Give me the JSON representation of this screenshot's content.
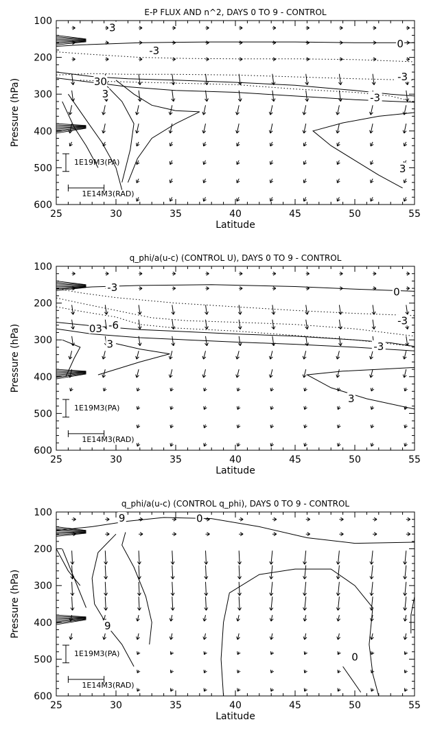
{
  "chart_data": [
    {
      "type": "contour",
      "title": "E-P FLUX AND n^2, DAYS 0 TO 9 - CONTROL",
      "xlabel": "Latitude",
      "ylabel": "Pressure (hPa)",
      "xlim": [
        25,
        55
      ],
      "ylim": [
        600,
        100
      ],
      "x_ticks": [
        "25",
        "30",
        "35",
        "40",
        "45",
        "50",
        "55"
      ],
      "y_ticks": [
        "100",
        "200",
        "300",
        "400",
        "500",
        "600"
      ],
      "vector_scale_labels": [
        "1E19M3(PA)",
        "1E14M3(RAD)"
      ],
      "contour_labels": [
        {
          "text": "0",
          "x": 53.8,
          "y": 163
        },
        {
          "text": "-3",
          "x": 33.2,
          "y": 182
        },
        {
          "text": "-3",
          "x": 54.0,
          "y": 253
        },
        {
          "text": "-3",
          "x": 51.7,
          "y": 310
        },
        {
          "text": "3",
          "x": 54.0,
          "y": 503
        },
        {
          "text": "3",
          "x": 29.7,
          "y": 120
        },
        {
          "text": "30",
          "x": 28.7,
          "y": 266
        },
        {
          "text": "3",
          "x": 29.1,
          "y": 300
        }
      ],
      "contours": [
        {
          "style": "solid",
          "points": [
            [
              25,
              170
            ],
            [
              27,
              166
            ],
            [
              32,
              160
            ],
            [
              38,
              158
            ],
            [
              45,
              158
            ],
            [
              50,
              160
            ],
            [
              55,
              160
            ]
          ]
        },
        {
          "style": "dotted",
          "points": [
            [
              25,
              185
            ],
            [
              28,
              192
            ],
            [
              32,
              200
            ],
            [
              36,
              203
            ],
            [
              40,
              204
            ],
            [
              45,
              204
            ],
            [
              50,
              206
            ],
            [
              55,
              212
            ]
          ]
        },
        {
          "style": "dotted",
          "points": [
            [
              25,
              248
            ],
            [
              28,
              244
            ],
            [
              31,
              246
            ],
            [
              35,
              246
            ],
            [
              40,
              248
            ],
            [
              45,
              253
            ],
            [
              50,
              258
            ],
            [
              55,
              262
            ]
          ]
        },
        {
          "style": "dotted",
          "points": [
            [
              27,
              262
            ],
            [
              30,
              266
            ],
            [
              35,
              270
            ],
            [
              40,
              274
            ],
            [
              45,
              286
            ],
            [
              50,
              295
            ],
            [
              53,
              305
            ],
            [
              55,
              322
            ]
          ]
        },
        {
          "style": "solid",
          "points": [
            [
              25,
              240
            ],
            [
              28,
              252
            ],
            [
              31,
              258
            ],
            [
              35,
              262
            ],
            [
              40,
              268
            ],
            [
              45,
              276
            ],
            [
              50,
              290
            ],
            [
              53,
              300
            ],
            [
              55,
              305
            ]
          ]
        },
        {
          "style": "solid",
          "points": [
            [
              25,
              256
            ],
            [
              28,
              268
            ],
            [
              31,
              280
            ],
            [
              35,
              290
            ],
            [
              40,
              295
            ],
            [
              45,
              305
            ],
            [
              50,
              315
            ],
            [
              55,
              322
            ]
          ]
        },
        {
          "style": "solid",
          "points": [
            [
              30,
              262
            ],
            [
              31.5,
              300
            ],
            [
              33,
              330
            ],
            [
              35,
              345
            ],
            [
              37,
              348
            ],
            [
              35,
              380
            ],
            [
              33,
              420
            ],
            [
              31.8,
              475
            ],
            [
              31,
              540
            ]
          ]
        },
        {
          "style": "solid",
          "points": [
            [
              29,
              270
            ],
            [
              30.5,
              320
            ],
            [
              31.5,
              380
            ],
            [
              31.2,
              450
            ],
            [
              30.5,
              540
            ]
          ]
        },
        {
          "style": "solid",
          "points": [
            [
              26,
              300
            ],
            [
              27.5,
              370
            ],
            [
              28.8,
              430
            ],
            [
              30,
              500
            ],
            [
              30.5,
              560
            ]
          ]
        },
        {
          "style": "solid",
          "points": [
            [
              25.5,
              320
            ],
            [
              26.5,
              390
            ],
            [
              27.5,
              440
            ],
            [
              28.5,
              500
            ]
          ]
        },
        {
          "style": "solid",
          "points": [
            [
              55,
              350
            ],
            [
              52,
              360
            ],
            [
              49,
              378
            ],
            [
              46.5,
              400
            ],
            [
              48,
              440
            ],
            [
              50,
              480
            ],
            [
              52,
              520
            ],
            [
              54,
              555
            ]
          ]
        }
      ]
    },
    {
      "type": "contour",
      "title": "q_phi/a(u-c) (CONTROL U), DAYS 0 TO 9 - CONTROL",
      "xlabel": "Latitude",
      "ylabel": "Pressure (hPa)",
      "xlim": [
        25,
        55
      ],
      "ylim": [
        600,
        100
      ],
      "x_ticks": [
        "25",
        "30",
        "35",
        "40",
        "45",
        "50",
        "55"
      ],
      "y_ticks": [
        "100",
        "200",
        "300",
        "400",
        "500",
        "600"
      ],
      "vector_scale_labels": [
        "1E19M3(PA)",
        "1E14M3(RAD)"
      ],
      "contour_labels": [
        {
          "text": "0",
          "x": 53.5,
          "y": 170
        },
        {
          "text": "-3",
          "x": 29.7,
          "y": 158
        },
        {
          "text": "-3",
          "x": 54.0,
          "y": 248
        },
        {
          "text": "-6",
          "x": 29.8,
          "y": 260
        },
        {
          "text": "03",
          "x": 28.3,
          "y": 270
        },
        {
          "text": "3",
          "x": 29.5,
          "y": 312
        },
        {
          "text": "-3",
          "x": 52.0,
          "y": 318
        },
        {
          "text": "3",
          "x": 49.7,
          "y": 460
        }
      ],
      "contours": [
        {
          "style": "solid",
          "points": [
            [
              25,
              162
            ],
            [
              28,
              156
            ],
            [
              32,
              152
            ],
            [
              38,
              150
            ],
            [
              45,
              155
            ],
            [
              50,
              162
            ],
            [
              55,
              168
            ]
          ]
        },
        {
          "style": "dotted",
          "points": [
            [
              25,
              160
            ],
            [
              27,
              172
            ],
            [
              30,
              185
            ],
            [
              35,
              200
            ],
            [
              40,
              210
            ],
            [
              45,
              220
            ],
            [
              50,
              228
            ],
            [
              55,
              234
            ]
          ]
        },
        {
          "style": "dotted",
          "points": [
            [
              25,
              186
            ],
            [
              27,
              200
            ],
            [
              30,
              220
            ],
            [
              33,
              240
            ],
            [
              36,
              248
            ],
            [
              40,
              252
            ],
            [
              45,
              258
            ],
            [
              50,
              270
            ],
            [
              55,
              290
            ]
          ]
        },
        {
          "style": "dotted",
          "points": [
            [
              25,
              210
            ],
            [
              27,
              222
            ],
            [
              30,
              238
            ],
            [
              32,
              258
            ],
            [
              35,
              268
            ],
            [
              40,
              276
            ],
            [
              45,
              288
            ],
            [
              50,
              300
            ],
            [
              55,
              318
            ]
          ]
        },
        {
          "style": "solid",
          "points": [
            [
              25,
              252
            ],
            [
              28,
              262
            ],
            [
              32,
              272
            ],
            [
              36,
              278
            ],
            [
              40,
              284
            ],
            [
              45,
              290
            ],
            [
              50,
              300
            ],
            [
              53,
              308
            ],
            [
              55,
              318
            ]
          ]
        },
        {
          "style": "solid",
          "points": [
            [
              25,
              270
            ],
            [
              28,
              284
            ],
            [
              32,
              294
            ],
            [
              36,
              300
            ],
            [
              40,
              306
            ],
            [
              45,
              312
            ],
            [
              50,
              320
            ],
            [
              55,
              330
            ]
          ]
        },
        {
          "style": "solid",
          "points": [
            [
              30,
              310
            ],
            [
              32,
              325
            ],
            [
              34.5,
              338
            ],
            [
              32,
              360
            ],
            [
              30,
              380
            ],
            [
              28.5,
              395
            ]
          ]
        },
        {
          "style": "solid",
          "points": [
            [
              25.5,
              300
            ],
            [
              27,
              320
            ],
            [
              26.5,
              350
            ],
            [
              25.8,
              400
            ]
          ]
        },
        {
          "style": "solid",
          "points": [
            [
              55,
              375
            ],
            [
              52,
              380
            ],
            [
              49,
              385
            ],
            [
              46,
              395
            ],
            [
              48,
              430
            ],
            [
              51,
              460
            ],
            [
              55,
              488
            ]
          ]
        }
      ]
    },
    {
      "type": "contour",
      "title": "q_phi/a(u-c) (CONTROL q_phi), DAYS 0 TO 9 - CONTROL",
      "xlabel": "Latitude",
      "ylabel": "Pressure (hPa)",
      "xlim": [
        25,
        55
      ],
      "ylim": [
        600,
        100
      ],
      "x_ticks": [
        "25",
        "30",
        "35",
        "40",
        "45",
        "50",
        "55"
      ],
      "y_ticks": [
        "100",
        "200",
        "300",
        "400",
        "500",
        "600"
      ],
      "vector_scale_labels": [
        "1E19M3(PA)",
        "1E14M3(RAD)"
      ],
      "contour_labels": [
        {
          "text": "0",
          "x": 37.0,
          "y": 118
        },
        {
          "text": "9",
          "x": 30.5,
          "y": 117
        },
        {
          "text": "9",
          "x": 29.3,
          "y": 410
        },
        {
          "text": "0",
          "x": 50.0,
          "y": 495
        }
      ],
      "contours": [
        {
          "style": "solid",
          "points": [
            [
              25,
              150
            ],
            [
              28,
              140
            ],
            [
              31,
              125
            ],
            [
              34,
              115
            ],
            [
              38,
              118
            ],
            [
              42,
              140
            ],
            [
              46,
              170
            ],
            [
              50,
              185
            ],
            [
              55,
              182
            ]
          ]
        },
        {
          "style": "solid",
          "points": [
            [
              39,
              600
            ],
            [
              38.8,
              500
            ],
            [
              39,
              400
            ],
            [
              39.5,
              320
            ],
            [
              42,
              270
            ],
            [
              45,
              255
            ],
            [
              48,
              255
            ],
            [
              50,
              300
            ],
            [
              51.5,
              360
            ],
            [
              51.2,
              460
            ],
            [
              51.5,
              540
            ],
            [
              52,
              600
            ]
          ]
        },
        {
          "style": "solid",
          "points": [
            [
              49,
              520
            ],
            [
              50.5,
              590
            ]
          ]
        },
        {
          "style": "solid",
          "points": [
            [
              30,
              160
            ],
            [
              28.5,
              210
            ],
            [
              28,
              280
            ],
            [
              28.2,
              350
            ],
            [
              29.5,
              420
            ],
            [
              30.5,
              460
            ],
            [
              31.5,
              520
            ]
          ]
        },
        {
          "style": "solid",
          "points": [
            [
              30.8,
              155
            ],
            [
              30.5,
              190
            ],
            [
              31.5,
              250
            ],
            [
              32.5,
              330
            ],
            [
              33,
              400
            ],
            [
              32.8,
              460
            ]
          ]
        },
        {
          "style": "solid",
          "points": [
            [
              25.5,
              200
            ],
            [
              26.5,
              280
            ],
            [
              27.5,
              360
            ]
          ]
        },
        {
          "style": "solid",
          "points": [
            [
              25,
              200
            ],
            [
              26,
              260
            ],
            [
              27,
              300
            ]
          ]
        },
        {
          "style": "solid",
          "points": [
            [
              55,
              330
            ],
            [
              54.7,
              380
            ],
            [
              54.7,
              430
            ]
          ]
        }
      ]
    }
  ]
}
